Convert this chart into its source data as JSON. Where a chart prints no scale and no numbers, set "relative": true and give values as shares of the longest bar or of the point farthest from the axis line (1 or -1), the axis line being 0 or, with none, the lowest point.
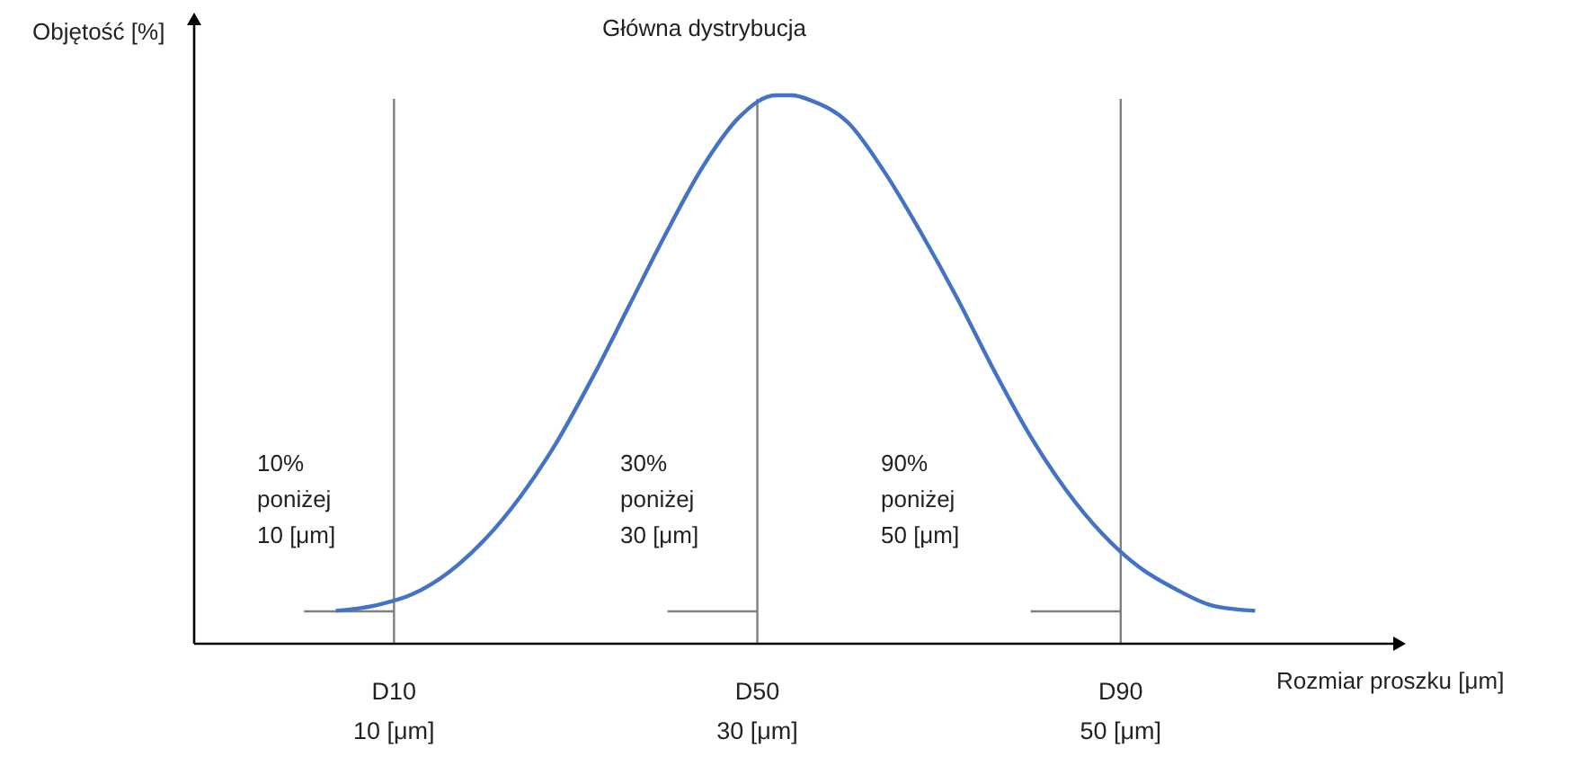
{
  "chart_data": {
    "type": "line",
    "relative": true,
    "title": "Główna dystrybucja",
    "xlabel": "Rozmiar proszku [μm]",
    "ylabel": "Objętość [%]",
    "xlim": [
      -1,
      65
    ],
    "xticks": [
      {
        "value": 10,
        "label": "10 [μm]"
      },
      {
        "value": 30,
        "label": "30 [μm]"
      },
      {
        "value": 50,
        "label": "50 [μm]"
      }
    ],
    "x": [
      6.8,
      9,
      11,
      13,
      15,
      17,
      19,
      21,
      23,
      25,
      27,
      29,
      31,
      31.9,
      33,
      35,
      37,
      39,
      41,
      43,
      45,
      47,
      49,
      51,
      53,
      55,
      57.4
    ],
    "series": [
      {
        "color": "#4472c4",
        "values": [
          0.06,
          0.07,
          0.09,
          0.13,
          0.19,
          0.27,
          0.37,
          0.49,
          0.62,
          0.75,
          0.87,
          0.96,
          1.0,
          1.0,
          0.99,
          0.95,
          0.86,
          0.75,
          0.63,
          0.5,
          0.38,
          0.28,
          0.2,
          0.14,
          0.1,
          0.07,
          0.06
        ]
      }
    ],
    "ref_lines": [
      {
        "axis": "x",
        "value": 10,
        "label": "D10",
        "color": "#7f7f7f"
      },
      {
        "axis": "x",
        "value": 30,
        "label": "D50",
        "color": "#7f7f7f"
      },
      {
        "axis": "x",
        "value": 50,
        "label": "D90",
        "color": "#7f7f7f"
      }
    ],
    "annotations": [
      "10%\nponiżej\n10 [μm]",
      "30%\nponiżej\n30 [μm]",
      "90%\nponiżej\n50 [μm]"
    ],
    "grid": false,
    "legend": false,
    "marker": "none",
    "line_style": "solid"
  }
}
